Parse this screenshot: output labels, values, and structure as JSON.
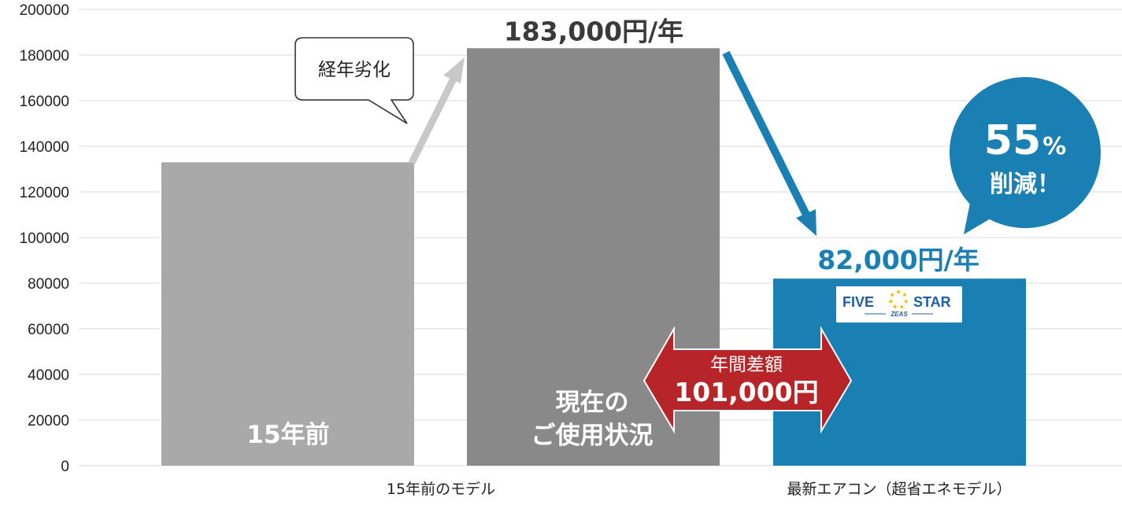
{
  "chart_data": {
    "type": "bar",
    "ylim": [
      0,
      200000
    ],
    "y_ticks": [
      0,
      20000,
      40000,
      60000,
      80000,
      100000,
      120000,
      140000,
      160000,
      180000,
      200000
    ],
    "grid": true,
    "categories": [
      "15年前のモデル",
      "最新エアコン（超省エネモデル）"
    ],
    "bars": [
      {
        "value": 133000,
        "inner_label": "15年前",
        "color": "#a9a9a9"
      },
      {
        "value": 183000,
        "inner_label_lines": [
          "現在の",
          "ご使用状況"
        ],
        "top_label": "183,000円/年",
        "color": "#898989"
      },
      {
        "value": 82000,
        "top_label": "82,000円/年",
        "color": "#1a7fb3"
      }
    ],
    "annotations": {
      "degradation_callout": "経年劣化",
      "difference_title": "年間差額",
      "difference_value": "101,000円",
      "reduction_percent": "55",
      "reduction_symbol": "%",
      "reduction_text": "削減！",
      "logo_main_left": "FIVE",
      "logo_main_right": "STAR",
      "logo_sub": "ZEAS"
    },
    "colors": {
      "grid": "#d9d9d9",
      "gray_arrow": "#c8c8c8",
      "blue": "#1a7fb3",
      "red": "#b82528",
      "value_dark": "#3a3a3a",
      "star": "#f2b705"
    }
  }
}
